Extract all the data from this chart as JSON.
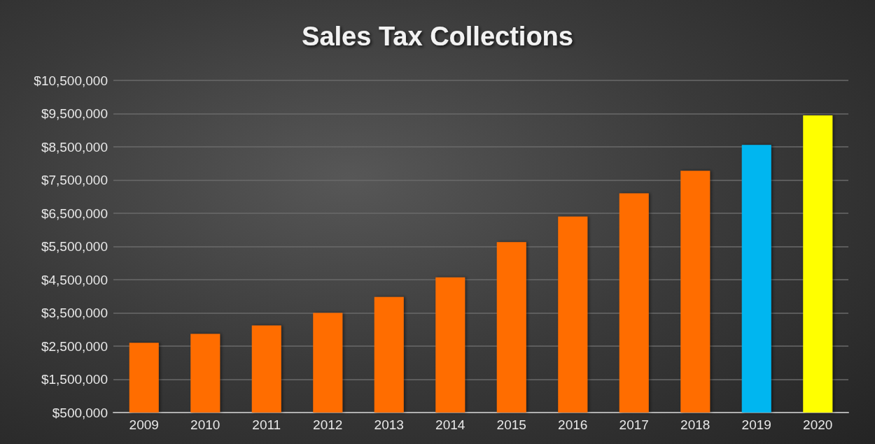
{
  "chart_data": {
    "type": "bar",
    "title": "Sales Tax Collections",
    "categories": [
      "2009",
      "2010",
      "2011",
      "2012",
      "2013",
      "2014",
      "2015",
      "2016",
      "2017",
      "2018",
      "2019",
      "2020"
    ],
    "values": [
      2600000,
      2870000,
      3120000,
      3500000,
      3980000,
      4570000,
      5630000,
      6400000,
      7100000,
      7780000,
      8560000,
      9450000
    ],
    "colors": [
      "#ff6d00",
      "#ff6d00",
      "#ff6d00",
      "#ff6d00",
      "#ff6d00",
      "#ff6d00",
      "#ff6d00",
      "#ff6d00",
      "#ff6d00",
      "#ff6d00",
      "#00b6f0",
      "#ffff00"
    ],
    "ylim": [
      500000,
      10500000
    ],
    "yticks": [
      {
        "value": 500000,
        "label": "$500,000"
      },
      {
        "value": 1500000,
        "label": "$1,500,000"
      },
      {
        "value": 2500000,
        "label": "$2,500,000"
      },
      {
        "value": 3500000,
        "label": "$3,500,000"
      },
      {
        "value": 4500000,
        "label": "$4,500,000"
      },
      {
        "value": 5500000,
        "label": "$5,500,000"
      },
      {
        "value": 6500000,
        "label": "$6,500,000"
      },
      {
        "value": 7500000,
        "label": "$7,500,000"
      },
      {
        "value": 8500000,
        "label": "$8,500,000"
      },
      {
        "value": 9500000,
        "label": "$9,500,000"
      },
      {
        "value": 10500000,
        "label": "$10,500,000"
      }
    ],
    "grid": "y"
  }
}
